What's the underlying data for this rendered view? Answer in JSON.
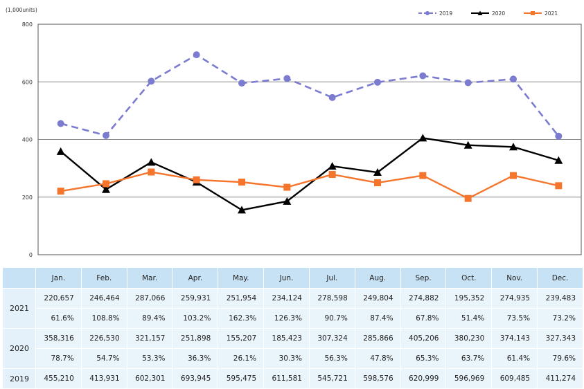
{
  "chart_data": {
    "type": "line",
    "ylabel": "(1,000units)",
    "ylim": [
      0,
      800
    ],
    "yticks": [
      0,
      200,
      400,
      600,
      800
    ],
    "grid": true,
    "legend_position": "top-right",
    "categories": [
      "Jan.",
      "Feb.",
      "Mar.",
      "Apr.",
      "May.",
      "Jun.",
      "Jul.",
      "Aug.",
      "Sep.",
      "Oct.",
      "Nov.",
      "Dec."
    ],
    "series": [
      {
        "name": "2019",
        "color": "#7b7bcf",
        "marker": "circle",
        "line": "dashed",
        "values": [
          455.21,
          413.931,
          602.301,
          693.945,
          595.475,
          611.581,
          545.721,
          598.576,
          620.999,
          596.969,
          609.485,
          411.274
        ]
      },
      {
        "name": "2020",
        "color": "#000000",
        "marker": "triangle",
        "line": "solid",
        "values": [
          358.316,
          226.53,
          321.157,
          251.898,
          155.207,
          185.423,
          307.324,
          285.866,
          405.206,
          380.23,
          374.143,
          327.343
        ]
      },
      {
        "name": "2021",
        "color": "#f5752d",
        "marker": "square",
        "line": "solid",
        "values": [
          220.657,
          246.464,
          287.066,
          259.931,
          251.954,
          234.124,
          278.598,
          249.804,
          274.882,
          195.352,
          274.935,
          239.483
        ]
      }
    ]
  },
  "table": {
    "months": [
      "Jan.",
      "Feb.",
      "Mar.",
      "Apr.",
      "May.",
      "Jun.",
      "Jul.",
      "Aug.",
      "Sep.",
      "Oct.",
      "Nov.",
      "Dec."
    ],
    "rows": [
      {
        "year": "2021",
        "units": [
          "220,657",
          "246,464",
          "287,066",
          "259,931",
          "251,954",
          "234,124",
          "278,598",
          "249,804",
          "274,882",
          "195,352",
          "274,935",
          "239,483"
        ],
        "pct": [
          "61.6%",
          "108.8%",
          "89.4%",
          "103.2%",
          "162.3%",
          "126.3%",
          "90.7%",
          "87.4%",
          "67.8%",
          "51.4%",
          "73.5%",
          "73.2%"
        ]
      },
      {
        "year": "2020",
        "units": [
          "358,316",
          "226,530",
          "321,157",
          "251,898",
          "155,207",
          "185,423",
          "307,324",
          "285,866",
          "405,206",
          "380,230",
          "374,143",
          "327,343"
        ],
        "pct": [
          "78.7%",
          "54.7%",
          "53.3%",
          "36.3%",
          "26.1%",
          "30.3%",
          "56.3%",
          "47.8%",
          "65.3%",
          "63.7%",
          "61.4%",
          "79.6%"
        ]
      },
      {
        "year": "2019",
        "units": [
          "455,210",
          "413,931",
          "602,301",
          "693,945",
          "595,475",
          "611,581",
          "545,721",
          "598,576",
          "620,999",
          "596,969",
          "609,485",
          "411,274"
        ]
      }
    ]
  }
}
